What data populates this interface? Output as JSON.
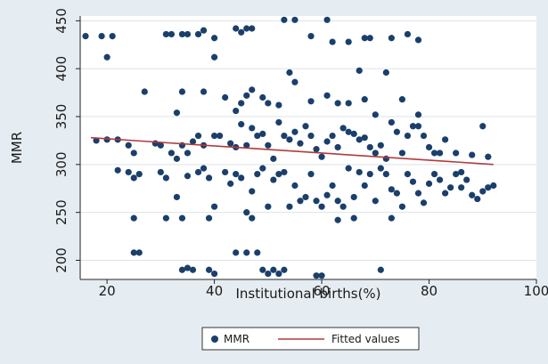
{
  "chart_data": {
    "type": "scatter",
    "xlabel": "Institutional births(%)",
    "ylabel": "MMR",
    "xlim": [
      15,
      100
    ],
    "ylim": [
      180,
      455
    ],
    "xticks": [
      20,
      40,
      60,
      80,
      100
    ],
    "yticks": [
      200,
      250,
      300,
      350,
      400,
      450
    ],
    "grid": "horizontal",
    "legend_position": "bottom",
    "series": [
      {
        "name": "MMR",
        "kind": "scatter",
        "color": "#1b3f6b",
        "points": [
          [
            16,
            434
          ],
          [
            19,
            434
          ],
          [
            20,
            412
          ],
          [
            21,
            434
          ],
          [
            31,
            436
          ],
          [
            32,
            436
          ],
          [
            34,
            436
          ],
          [
            35,
            436
          ],
          [
            37,
            436
          ],
          [
            38,
            440
          ],
          [
            40,
            432
          ],
          [
            40,
            412
          ],
          [
            44,
            442
          ],
          [
            45,
            438
          ],
          [
            46,
            442
          ],
          [
            47,
            442
          ],
          [
            53,
            451
          ],
          [
            55,
            451
          ],
          [
            58,
            434
          ],
          [
            61,
            451
          ],
          [
            62,
            428
          ],
          [
            65,
            428
          ],
          [
            67,
            398
          ],
          [
            68,
            432
          ],
          [
            69,
            432
          ],
          [
            73,
            432
          ],
          [
            76,
            436
          ],
          [
            78,
            430
          ],
          [
            27,
            376
          ],
          [
            33,
            354
          ],
          [
            34,
            376
          ],
          [
            38,
            376
          ],
          [
            42,
            370
          ],
          [
            44,
            356
          ],
          [
            45,
            364
          ],
          [
            46,
            372
          ],
          [
            47,
            378
          ],
          [
            49,
            370
          ],
          [
            50,
            364
          ],
          [
            52,
            362
          ],
          [
            54,
            396
          ],
          [
            55,
            386
          ],
          [
            58,
            366
          ],
          [
            61,
            372
          ],
          [
            63,
            364
          ],
          [
            65,
            364
          ],
          [
            68,
            368
          ],
          [
            70,
            352
          ],
          [
            72,
            396
          ],
          [
            75,
            368
          ],
          [
            78,
            352
          ],
          [
            18,
            325
          ],
          [
            20,
            326
          ],
          [
            22,
            326
          ],
          [
            24,
            320
          ],
          [
            25,
            312
          ],
          [
            29,
            322
          ],
          [
            30,
            320
          ],
          [
            32,
            312
          ],
          [
            33,
            306
          ],
          [
            34,
            320
          ],
          [
            35,
            312
          ],
          [
            36,
            324
          ],
          [
            37,
            330
          ],
          [
            38,
            320
          ],
          [
            40,
            330
          ],
          [
            41,
            330
          ],
          [
            43,
            322
          ],
          [
            44,
            318
          ],
          [
            45,
            342
          ],
          [
            46,
            320
          ],
          [
            47,
            338
          ],
          [
            48,
            330
          ],
          [
            49,
            332
          ],
          [
            50,
            320
          ],
          [
            51,
            306
          ],
          [
            52,
            344
          ],
          [
            53,
            330
          ],
          [
            54,
            326
          ],
          [
            55,
            334
          ],
          [
            56,
            322
          ],
          [
            57,
            340
          ],
          [
            58,
            330
          ],
          [
            59,
            316
          ],
          [
            60,
            308
          ],
          [
            61,
            324
          ],
          [
            62,
            330
          ],
          [
            63,
            318
          ],
          [
            64,
            338
          ],
          [
            65,
            334
          ],
          [
            66,
            332
          ],
          [
            67,
            326
          ],
          [
            68,
            328
          ],
          [
            69,
            318
          ],
          [
            70,
            312
          ],
          [
            71,
            320
          ],
          [
            72,
            306
          ],
          [
            73,
            344
          ],
          [
            74,
            334
          ],
          [
            75,
            312
          ],
          [
            76,
            330
          ],
          [
            77,
            340
          ],
          [
            78,
            340
          ],
          [
            79,
            330
          ],
          [
            80,
            318
          ],
          [
            81,
            312
          ],
          [
            82,
            312
          ],
          [
            83,
            326
          ],
          [
            85,
            312
          ],
          [
            86,
            292
          ],
          [
            88,
            310
          ],
          [
            90,
            340
          ],
          [
            91,
            308
          ],
          [
            22,
            294
          ],
          [
            24,
            292
          ],
          [
            25,
            286
          ],
          [
            26,
            290
          ],
          [
            30,
            292
          ],
          [
            31,
            286
          ],
          [
            33,
            266
          ],
          [
            35,
            288
          ],
          [
            37,
            292
          ],
          [
            38,
            296
          ],
          [
            39,
            286
          ],
          [
            40,
            256
          ],
          [
            42,
            292
          ],
          [
            43,
            280
          ],
          [
            44,
            290
          ],
          [
            45,
            286
          ],
          [
            46,
            250
          ],
          [
            47,
            272
          ],
          [
            48,
            290
          ],
          [
            49,
            296
          ],
          [
            50,
            256
          ],
          [
            51,
            284
          ],
          [
            52,
            290
          ],
          [
            53,
            292
          ],
          [
            54,
            256
          ],
          [
            55,
            278
          ],
          [
            56,
            262
          ],
          [
            57,
            266
          ],
          [
            58,
            290
          ],
          [
            59,
            262
          ],
          [
            60,
            256
          ],
          [
            61,
            268
          ],
          [
            62,
            278
          ],
          [
            63,
            262
          ],
          [
            64,
            256
          ],
          [
            65,
            296
          ],
          [
            66,
            266
          ],
          [
            67,
            292
          ],
          [
            68,
            278
          ],
          [
            69,
            290
          ],
          [
            70,
            262
          ],
          [
            71,
            296
          ],
          [
            72,
            290
          ],
          [
            73,
            274
          ],
          [
            74,
            270
          ],
          [
            75,
            256
          ],
          [
            76,
            290
          ],
          [
            77,
            282
          ],
          [
            78,
            270
          ],
          [
            79,
            260
          ],
          [
            80,
            280
          ],
          [
            81,
            290
          ],
          [
            82,
            284
          ],
          [
            83,
            270
          ],
          [
            84,
            276
          ],
          [
            85,
            290
          ],
          [
            86,
            276
          ],
          [
            87,
            284
          ],
          [
            88,
            268
          ],
          [
            89,
            264
          ],
          [
            90,
            272
          ],
          [
            91,
            276
          ],
          [
            92,
            278
          ],
          [
            25,
            244
          ],
          [
            31,
            244
          ],
          [
            34,
            244
          ],
          [
            39,
            244
          ],
          [
            47,
            244
          ],
          [
            63,
            242
          ],
          [
            66,
            244
          ],
          [
            73,
            244
          ],
          [
            25,
            208
          ],
          [
            26,
            208
          ],
          [
            44,
            208
          ],
          [
            46,
            208
          ],
          [
            48,
            208
          ],
          [
            34,
            190
          ],
          [
            35,
            192
          ],
          [
            36,
            190
          ],
          [
            39,
            190
          ],
          [
            40,
            186
          ],
          [
            49,
            190
          ],
          [
            50,
            186
          ],
          [
            51,
            190
          ],
          [
            52,
            186
          ],
          [
            53,
            190
          ],
          [
            59,
            184
          ],
          [
            60,
            184
          ],
          [
            71,
            190
          ]
        ]
      },
      {
        "name": "Fitted values",
        "kind": "line",
        "color": "#b23a3a",
        "points": [
          [
            17,
            328
          ],
          [
            92,
            300
          ]
        ]
      }
    ]
  }
}
